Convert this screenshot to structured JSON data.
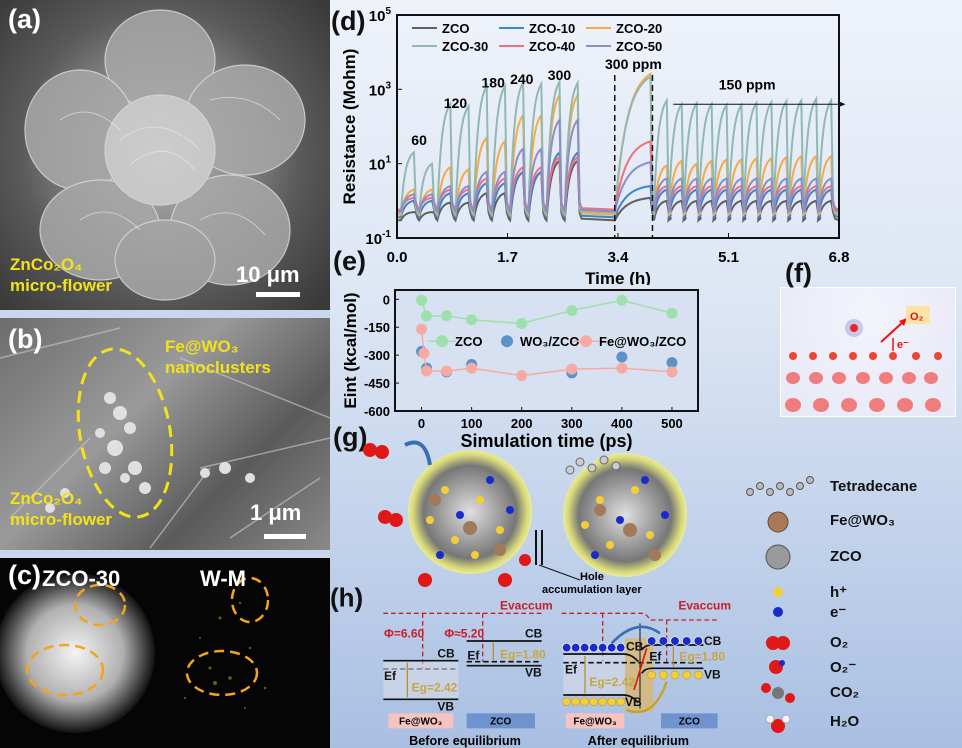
{
  "panels": {
    "a": "(a)",
    "b": "(b)",
    "c": "(c)",
    "d": "(d)",
    "e": "(e)",
    "f": "(f)",
    "g": "(g)",
    "h": "(h)"
  },
  "panel_a": {
    "material_line1": "ZnCo₂O₄",
    "material_line2": "micro-flower",
    "scale_bar": "10 μm"
  },
  "panel_b": {
    "cluster_line1": "Fe@WO₃",
    "cluster_line2": "nanoclusters",
    "material_line1": "ZnCo₂O₄",
    "material_line2": "micro-flower",
    "scale_bar": "1 μm"
  },
  "panel_c": {
    "left_label": "ZCO-30",
    "right_label": "W-M"
  },
  "panel_f": {
    "o2_label": "O₂",
    "electron_label": "e⁻"
  },
  "panel_g": {
    "hole_layer_line1": "Hole",
    "hole_layer_line2": "accumulation layer",
    "legend": [
      {
        "icon": "tetradecane-molecule",
        "label": "Tetradecane"
      },
      {
        "icon": "fe-wo3-particle",
        "label": "Fe@WO₃"
      },
      {
        "icon": "zco-flower",
        "label": "ZCO"
      },
      {
        "icon": "hole-yellow-sphere",
        "label": "h⁺"
      },
      {
        "icon": "electron-blue-sphere",
        "label": "e⁻"
      },
      {
        "icon": "o2-molecule",
        "label": "O₂"
      },
      {
        "icon": "o2-minus-molecule",
        "label": "O₂⁻"
      },
      {
        "icon": "co2-molecule",
        "label": "CO₂"
      },
      {
        "icon": "h2o-molecule",
        "label": "H₂O"
      }
    ]
  },
  "panel_h": {
    "evac": "Evaccum",
    "phi1": "Φ=6.60",
    "phi2": "Φ≈5.20",
    "cb": "CB",
    "vb": "VB",
    "ef": "Ef",
    "eg1": "Eg=2.42",
    "eg2": "Eg=1.80",
    "box1": "Fe@WO₃",
    "box2": "ZCO",
    "before": "Before equilibrium",
    "after": "After equilibrium"
  },
  "colors": {
    "ZCO": "#5f5f5f",
    "ZCO-10": "#3f86c8",
    "ZCO-20": "#f6a945",
    "ZCO-30": "#8fbab0",
    "ZCO-40": "#ef6f7d",
    "ZCO-50": "#8c8ec4"
  },
  "chart_data": [
    {
      "type": "line",
      "ylabel": "Resistance (Mohm)",
      "xlabel": "Time (h)",
      "yscale": "log",
      "ylim": [
        0.1,
        100000
      ],
      "xlim": [
        0,
        6.8
      ],
      "xticks": [
        "0.0",
        "1.7",
        "3.4",
        "5.1",
        "6.8"
      ],
      "xtick_values": [
        0,
        1.7,
        3.4,
        5.1,
        6.8
      ],
      "yticks": [
        {
          "base": "10",
          "exp": "5",
          "value": 100000
        },
        {
          "base": "10",
          "exp": "3",
          "value": 1000
        },
        {
          "base": "10",
          "exp": "1",
          "value": 10
        },
        {
          "base": "10",
          "exp": "-1",
          "value": 0.1
        }
      ],
      "annotations": {
        "c60": "60",
        "c120": "120",
        "c180": "180",
        "c240": "240",
        "c300": "300",
        "long": "300 ppm",
        "tail": "150 ppm"
      },
      "cycle_ppm": [
        60,
        60,
        120,
        120,
        180,
        180,
        240,
        240,
        300,
        300,
        300,
        150,
        150,
        150,
        150,
        150,
        150,
        150,
        150,
        150,
        150,
        150,
        150
      ],
      "cycle_start": [
        0.06,
        0.34,
        0.62,
        0.9,
        1.18,
        1.46,
        1.74,
        2.02,
        2.3,
        2.58,
        3.35,
        3.95,
        4.18,
        4.41,
        4.64,
        4.87,
        5.1,
        5.33,
        5.56,
        5.79,
        6.02,
        6.25,
        6.48
      ],
      "cycle_peak_time": [
        0.26,
        0.54,
        0.82,
        1.1,
        1.38,
        1.66,
        1.94,
        2.22,
        2.5,
        2.78,
        3.9,
        4.15,
        4.38,
        4.61,
        4.84,
        5.07,
        5.3,
        5.53,
        5.76,
        5.99,
        6.22,
        6.45,
        6.68
      ],
      "series": [
        {
          "name": "ZCO",
          "baseline": 0.3,
          "peaks": [
            0.5,
            0.5,
            0.9,
            0.9,
            1.6,
            1.6,
            6,
            6,
            12,
            12,
            1.2,
            1,
            1,
            1,
            1,
            1,
            1,
            1,
            1,
            1,
            1,
            1,
            1
          ]
        },
        {
          "name": "ZCO-10",
          "baseline": 0.36,
          "peaks": [
            1,
            1,
            1.6,
            1.6,
            3,
            3,
            6,
            6,
            20,
            20,
            2.5,
            2,
            2,
            2,
            2,
            2,
            2,
            2,
            2,
            2,
            2,
            2,
            2
          ]
        },
        {
          "name": "ZCO-20",
          "baseline": 0.42,
          "peaks": [
            2,
            2,
            8,
            7,
            50,
            40,
            200,
            200,
            700,
            700,
            2600,
            9,
            12,
            10,
            12,
            13,
            13,
            14,
            14,
            15,
            16,
            16,
            16
          ]
        },
        {
          "name": "ZCO-30",
          "baseline": 0.48,
          "peaks": [
            20,
            10,
            400,
            350,
            1200,
            1200,
            1500,
            1400,
            1600,
            1500,
            2200,
            500,
            400,
            420,
            400,
            380,
            380,
            430,
            450,
            480,
            500,
            560,
            500
          ]
        },
        {
          "name": "ZCO-40",
          "baseline": 0.58,
          "peaks": [
            1.2,
            1.2,
            2,
            2,
            4,
            4,
            8,
            8,
            15,
            15,
            40,
            2.5,
            2.5,
            2.5,
            2.5,
            2.5,
            2.5,
            2.5,
            2.5,
            2.5,
            2.5,
            2.5,
            2.5
          ]
        },
        {
          "name": "ZCO-50",
          "baseline": 0.52,
          "peaks": [
            1.5,
            1.5,
            2.5,
            2.5,
            6,
            6,
            25,
            25,
            150,
            150,
            11,
            4,
            4,
            4,
            4,
            4,
            4,
            4,
            4,
            4,
            4,
            4,
            4
          ]
        }
      ],
      "legend": [
        "ZCO",
        "ZCO-10",
        "ZCO-20",
        "ZCO-30",
        "ZCO-40",
        "ZCO-50"
      ],
      "legend_placement": "top"
    },
    {
      "type": "scatter",
      "ylabel": "Eint (kcal/mol)",
      "xlabel": "Simulation time (ps)",
      "xlim": [
        -53,
        552
      ],
      "ylim": [
        -600,
        50
      ],
      "xticks": [
        "0",
        "100",
        "200",
        "300",
        "400",
        "500"
      ],
      "xtick_values": [
        0,
        100,
        200,
        300,
        400,
        500
      ],
      "yticks": [
        "0",
        "-150",
        "-300",
        "-450",
        "-600"
      ],
      "ytick_values": [
        0,
        -150,
        -300,
        -450,
        -600
      ],
      "series": [
        {
          "name": "ZCO",
          "label": "ZCO",
          "color": "#9ee0ab",
          "line": true,
          "x": [
            0,
            10,
            50,
            100,
            200,
            300,
            400,
            500
          ],
          "y": [
            -5,
            -90,
            -88,
            -110,
            -130,
            -60,
            -5,
            -75
          ]
        },
        {
          "name": "WO3/ZCO",
          "label": "WO₃/ZCO",
          "color": "#5b93c8",
          "line": false,
          "x": [
            0,
            10,
            50,
            100,
            300,
            400,
            500
          ],
          "y": [
            -280,
            -370,
            -390,
            -350,
            -395,
            -310,
            -340
          ]
        },
        {
          "name": "Fe@WO3/ZCO",
          "label": "Fe@WO₃/ZCO",
          "color": "#f7aaa4",
          "line": true,
          "x": [
            0,
            5,
            10,
            50,
            100,
            200,
            300,
            400,
            500
          ],
          "y": [
            -160,
            -290,
            -385,
            -385,
            -370,
            -410,
            -375,
            -370,
            -390
          ]
        }
      ],
      "legend_placement": "center"
    }
  ]
}
